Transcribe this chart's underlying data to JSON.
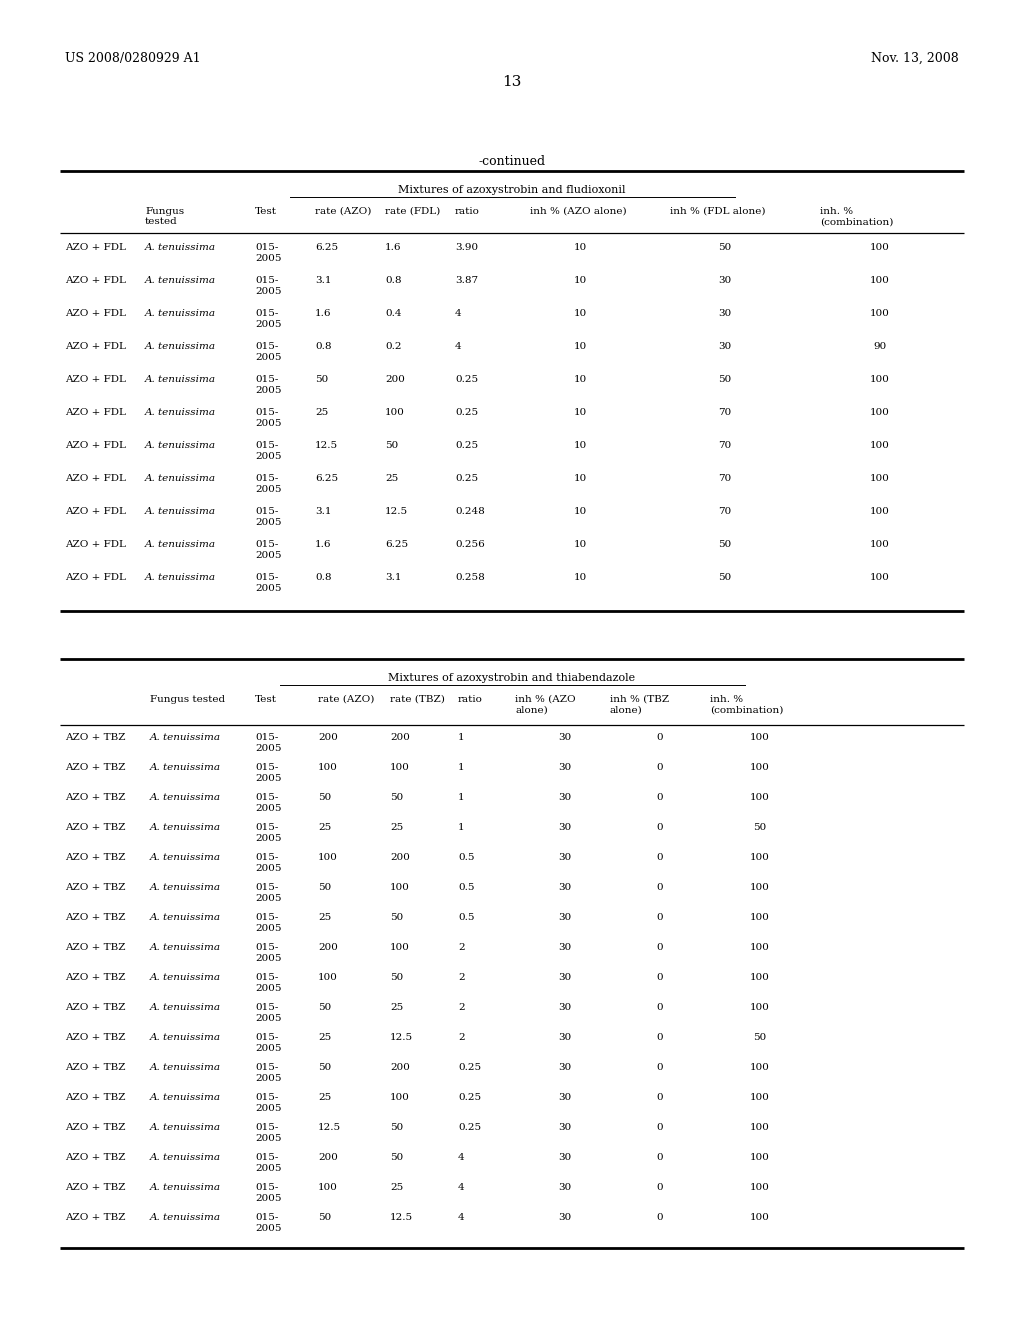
{
  "page_number": "13",
  "patent_left": "US 2008/0280929 A1",
  "patent_right": "Nov. 13, 2008",
  "continued_label": "-continued",
  "table1": {
    "title": "Mixtures of azoxystrobin and fludioxonil",
    "rows": [
      [
        "AZO + FDL",
        "A. tenuissima",
        "015-\n2005",
        "6.25",
        "1.6",
        "3.90",
        "10",
        "50",
        "100"
      ],
      [
        "AZO + FDL",
        "A. tenuissima",
        "015-\n2005",
        "3.1",
        "0.8",
        "3.87",
        "10",
        "30",
        "100"
      ],
      [
        "AZO + FDL",
        "A. tenuissima",
        "015-\n2005",
        "1.6",
        "0.4",
        "4",
        "10",
        "30",
        "100"
      ],
      [
        "AZO + FDL",
        "A. tenuissima",
        "015-\n2005",
        "0.8",
        "0.2",
        "4",
        "10",
        "30",
        "90"
      ],
      [
        "AZO + FDL",
        "A. tenuissima",
        "015-\n2005",
        "50",
        "200",
        "0.25",
        "10",
        "50",
        "100"
      ],
      [
        "AZO + FDL",
        "A. tenuissima",
        "015-\n2005",
        "25",
        "100",
        "0.25",
        "10",
        "70",
        "100"
      ],
      [
        "AZO + FDL",
        "A. tenuissima",
        "015-\n2005",
        "12.5",
        "50",
        "0.25",
        "10",
        "70",
        "100"
      ],
      [
        "AZO + FDL",
        "A. tenuissima",
        "015-\n2005",
        "6.25",
        "25",
        "0.25",
        "10",
        "70",
        "100"
      ],
      [
        "AZO + FDL",
        "A. tenuissima",
        "015-\n2005",
        "3.1",
        "12.5",
        "0.248",
        "10",
        "70",
        "100"
      ],
      [
        "AZO + FDL",
        "A. tenuissima",
        "015-\n2005",
        "1.6",
        "6.25",
        "0.256",
        "10",
        "50",
        "100"
      ],
      [
        "AZO + FDL",
        "A. tenuissima",
        "015-\n2005",
        "0.8",
        "3.1",
        "0.258",
        "10",
        "50",
        "100"
      ]
    ]
  },
  "table2": {
    "title": "Mixtures of azoxystrobin and thiabendazole",
    "rows": [
      [
        "AZO + TBZ",
        "A. tenuissima",
        "015-\n2005",
        "200",
        "200",
        "1",
        "30",
        "0",
        "100"
      ],
      [
        "AZO + TBZ",
        "A. tenuissima",
        "015-\n2005",
        "100",
        "100",
        "1",
        "30",
        "0",
        "100"
      ],
      [
        "AZO + TBZ",
        "A. tenuissima",
        "015-\n2005",
        "50",
        "50",
        "1",
        "30",
        "0",
        "100"
      ],
      [
        "AZO + TBZ",
        "A. tenuissima",
        "015-\n2005",
        "25",
        "25",
        "1",
        "30",
        "0",
        "50"
      ],
      [
        "AZO + TBZ",
        "A. tenuissima",
        "015-\n2005",
        "100",
        "200",
        "0.5",
        "30",
        "0",
        "100"
      ],
      [
        "AZO + TBZ",
        "A. tenuissima",
        "015-\n2005",
        "50",
        "100",
        "0.5",
        "30",
        "0",
        "100"
      ],
      [
        "AZO + TBZ",
        "A. tenuissima",
        "015-\n2005",
        "25",
        "50",
        "0.5",
        "30",
        "0",
        "100"
      ],
      [
        "AZO + TBZ",
        "A. tenuissima",
        "015-\n2005",
        "200",
        "100",
        "2",
        "30",
        "0",
        "100"
      ],
      [
        "AZO + TBZ",
        "A. tenuissima",
        "015-\n2005",
        "100",
        "50",
        "2",
        "30",
        "0",
        "100"
      ],
      [
        "AZO + TBZ",
        "A. tenuissima",
        "015-\n2005",
        "50",
        "25",
        "2",
        "30",
        "0",
        "100"
      ],
      [
        "AZO + TBZ",
        "A. tenuissima",
        "015-\n2005",
        "25",
        "12.5",
        "2",
        "30",
        "0",
        "50"
      ],
      [
        "AZO + TBZ",
        "A. tenuissima",
        "015-\n2005",
        "50",
        "200",
        "0.25",
        "30",
        "0",
        "100"
      ],
      [
        "AZO + TBZ",
        "A. tenuissima",
        "015-\n2005",
        "25",
        "100",
        "0.25",
        "30",
        "0",
        "100"
      ],
      [
        "AZO + TBZ",
        "A. tenuissima",
        "015-\n2005",
        "12.5",
        "50",
        "0.25",
        "30",
        "0",
        "100"
      ],
      [
        "AZO + TBZ",
        "A. tenuissima",
        "015-\n2005",
        "200",
        "50",
        "4",
        "30",
        "0",
        "100"
      ],
      [
        "AZO + TBZ",
        "A. tenuissima",
        "015-\n2005",
        "100",
        "25",
        "4",
        "30",
        "0",
        "100"
      ],
      [
        "AZO + TBZ",
        "A. tenuissima",
        "015-\n2005",
        "50",
        "12.5",
        "4",
        "30",
        "0",
        "100"
      ]
    ]
  },
  "bg_color": "#ffffff",
  "text_color": "#000000"
}
